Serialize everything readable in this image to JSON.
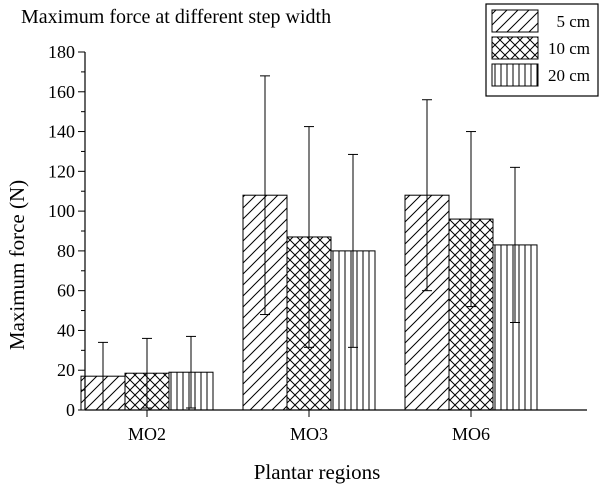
{
  "chart_data": {
    "type": "bar",
    "title": "Maximum force at different step width",
    "xlabel": "Plantar regions",
    "ylabel": "Maximum force (N)",
    "categories": [
      "MO2",
      "MO3",
      "MO6"
    ],
    "ylim": [
      0,
      180
    ],
    "yticks": [
      0,
      20,
      40,
      60,
      80,
      100,
      120,
      140,
      160,
      180
    ],
    "grid": false,
    "legend_position": "top-right",
    "series": [
      {
        "name": "5 cm",
        "pattern": "diagonal-hatch",
        "values": [
          17,
          108,
          108
        ],
        "errors": [
          17,
          60,
          48
        ]
      },
      {
        "name": "10 cm",
        "pattern": "crosshatch",
        "values": [
          18.5,
          87,
          96
        ],
        "errors": [
          17.5,
          55.5,
          44
        ]
      },
      {
        "name": "20 cm",
        "pattern": "vertical-lines",
        "values": [
          19,
          80,
          83
        ],
        "errors": [
          18,
          48.5,
          39
        ]
      }
    ]
  }
}
